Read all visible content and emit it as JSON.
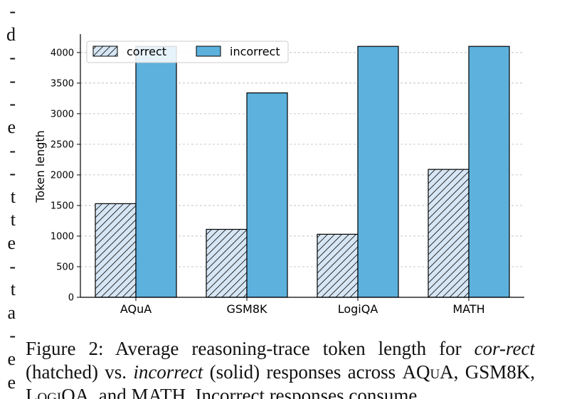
{
  "margin_text": [
    "-",
    "d",
    "-",
    "-",
    "-",
    "e",
    "-",
    "-",
    "t",
    "t",
    "e",
    "-",
    "t",
    "a",
    "-",
    "e",
    "e"
  ],
  "chart_data": {
    "type": "bar",
    "categories": [
      "AQuA",
      "GSM8K",
      "LogiQA",
      "MATH"
    ],
    "series": [
      {
        "name": "correct",
        "values": [
          1530,
          1110,
          1030,
          2090
        ],
        "color": "#d6e6f4",
        "pattern": "hatched"
      },
      {
        "name": "incorrect",
        "values": [
          4100,
          3340,
          4100,
          4100
        ],
        "color": "#5cb1dd",
        "pattern": "solid"
      }
    ],
    "ylabel": "Token length",
    "xlabel": "",
    "ylim": [
      0,
      4300
    ],
    "yticks": [
      0,
      500,
      1000,
      1500,
      2000,
      2500,
      3000,
      3500,
      4000
    ],
    "grid": "horizontal dashed",
    "legend": "top-left"
  },
  "caption": {
    "fig_label": "Figure 2:",
    "t1": " Average reasoning-trace token length for ",
    "correct_word": "cor-rect",
    "t2": " (hatched) vs. ",
    "incorrect_word": "incorrect",
    "t3": " (solid) responses across ",
    "aqua": "AQuA",
    "sep1": ", ",
    "gsm": "GSM8K",
    "sep2": ", ",
    "logiqa": "LogiQA",
    "t4": ", and ",
    "math": "MATH",
    "t5": ". Incorrect responses consume"
  }
}
